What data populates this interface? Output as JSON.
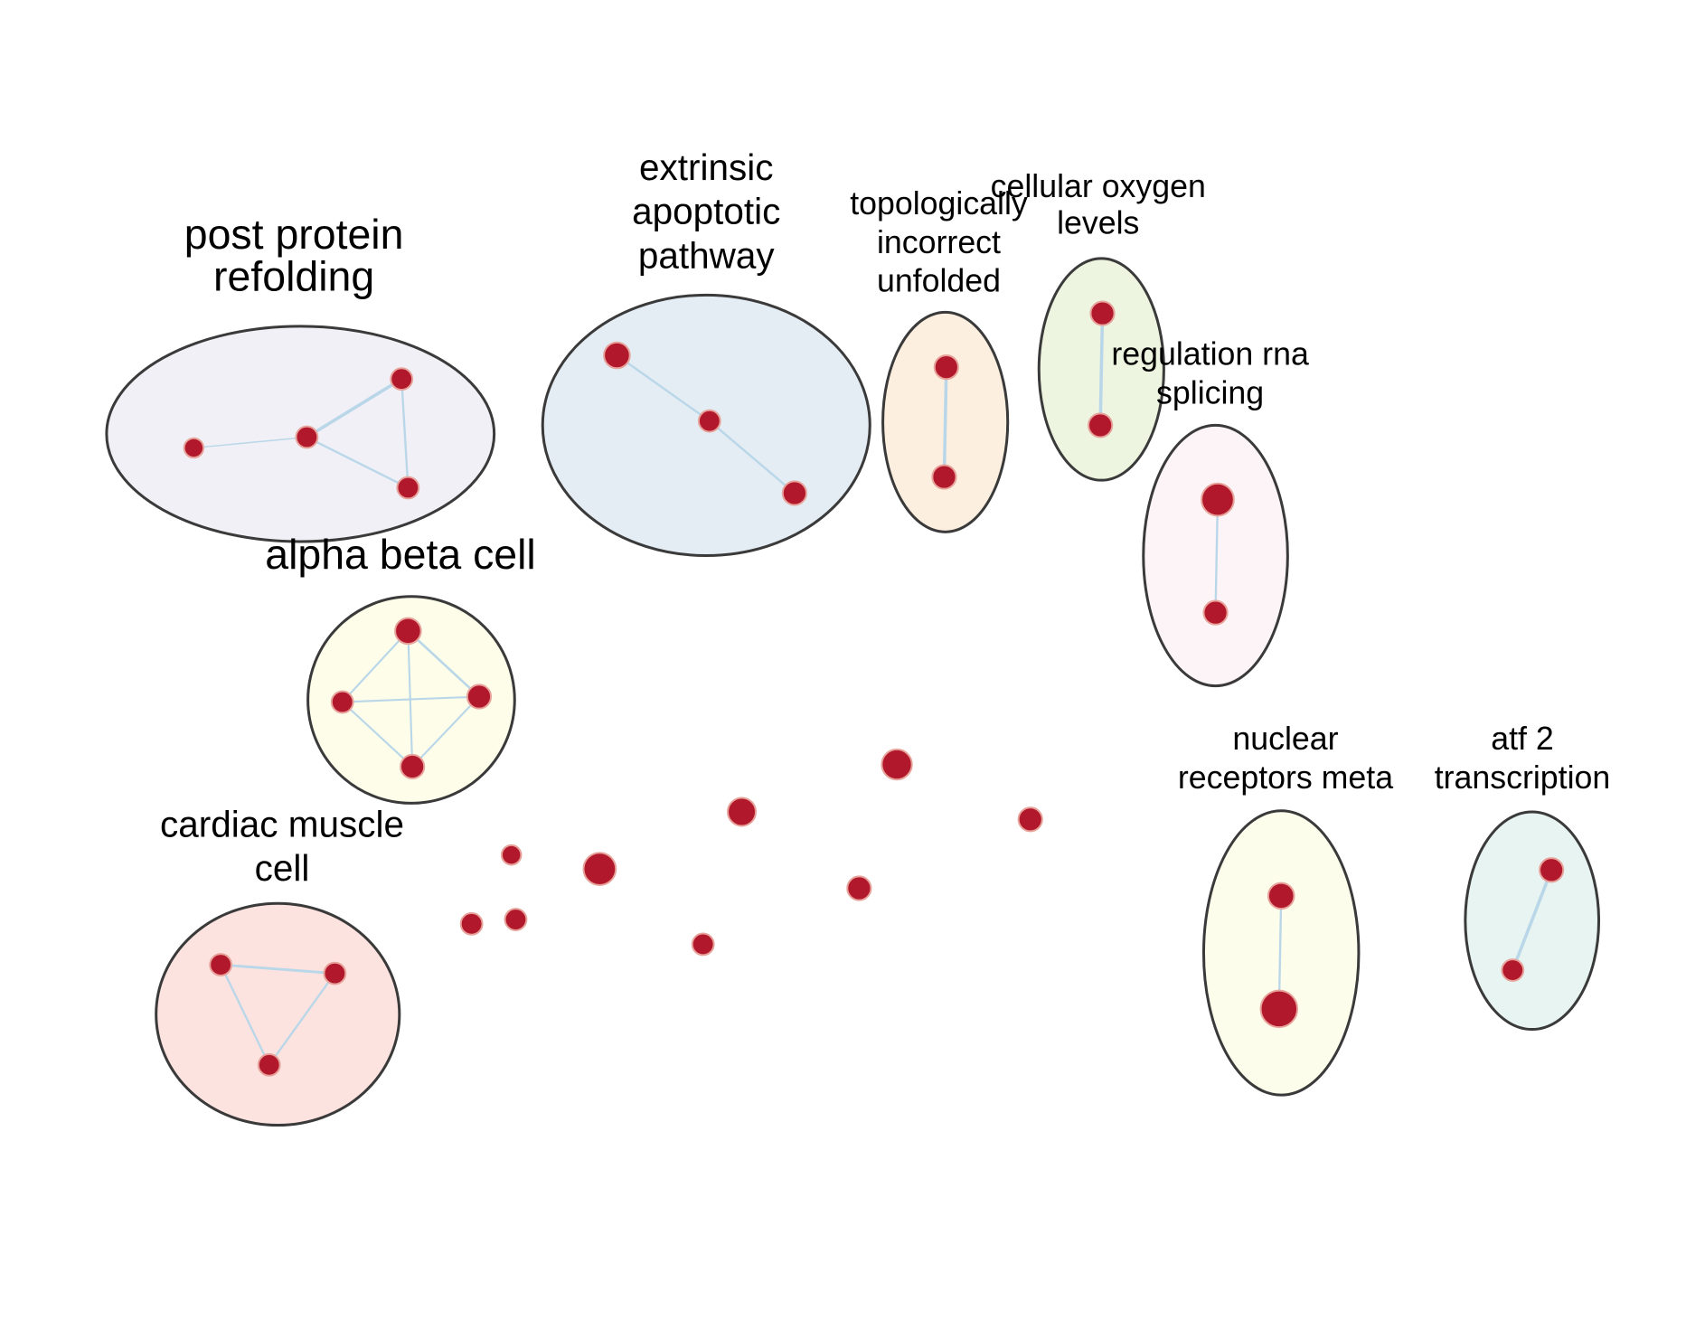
{
  "diagram": {
    "type": "enrichment-cluster-network",
    "node_color": "#b2182b",
    "edge_color": "#b9d7e8",
    "outline_color": "#3a3a3a",
    "clusters": [
      {
        "id": "post-protein-refolding",
        "label_lines": [
          "post protein",
          "refolding"
        ],
        "fill": "#f1f0f6",
        "nodes": 4,
        "edges": [
          [
            0,
            1
          ],
          [
            1,
            2
          ],
          [
            1,
            3
          ],
          [
            2,
            3
          ]
        ]
      },
      {
        "id": "extrinsic-apoptotic-pathway",
        "label_lines": [
          "extrinsic",
          "apoptotic",
          "pathway"
        ],
        "fill": "#e4ecf4",
        "nodes": 3,
        "edges": [
          [
            0,
            1
          ],
          [
            1,
            2
          ]
        ]
      },
      {
        "id": "topologically-incorrect-unfolded",
        "label_lines": [
          "topologically",
          "incorrect",
          "unfolded"
        ],
        "fill": "#fdefdf",
        "nodes": 2,
        "edges": [
          [
            0,
            1
          ]
        ]
      },
      {
        "id": "cellular-oxygen-levels",
        "label_lines": [
          "cellular oxygen",
          "levels"
        ],
        "fill": "#edf5e0",
        "nodes": 2,
        "edges": [
          [
            0,
            1
          ]
        ]
      },
      {
        "id": "regulation-rna-splicing",
        "label_lines": [
          "regulation rna",
          "splicing"
        ],
        "fill": "#fdf4f8",
        "nodes": 2,
        "edges": [
          [
            0,
            1
          ]
        ]
      },
      {
        "id": "alpha-beta-cell",
        "label_lines": [
          "alpha beta cell"
        ],
        "fill": "#fdfdea",
        "nodes": 4,
        "edges": [
          [
            0,
            1
          ],
          [
            0,
            2
          ],
          [
            0,
            3
          ],
          [
            1,
            2
          ],
          [
            1,
            3
          ],
          [
            2,
            3
          ]
        ]
      },
      {
        "id": "cardiac-muscle-cell",
        "label_lines": [
          "cardiac muscle",
          "cell"
        ],
        "fill": "#fde3df",
        "nodes": 3,
        "edges": [
          [
            0,
            1
          ],
          [
            0,
            2
          ],
          [
            1,
            2
          ]
        ]
      },
      {
        "id": "nuclear-receptors-meta",
        "label_lines": [
          "nuclear",
          "receptors meta"
        ],
        "fill": "#fdfdec",
        "nodes": 2,
        "edges": [
          [
            0,
            1
          ]
        ]
      },
      {
        "id": "atf-2-transcription",
        "label_lines": [
          "atf 2",
          "transcription"
        ],
        "fill": "#e7f4f1",
        "nodes": 2,
        "edges": [
          [
            0,
            1
          ]
        ]
      }
    ],
    "unclustered_nodes": 10
  }
}
